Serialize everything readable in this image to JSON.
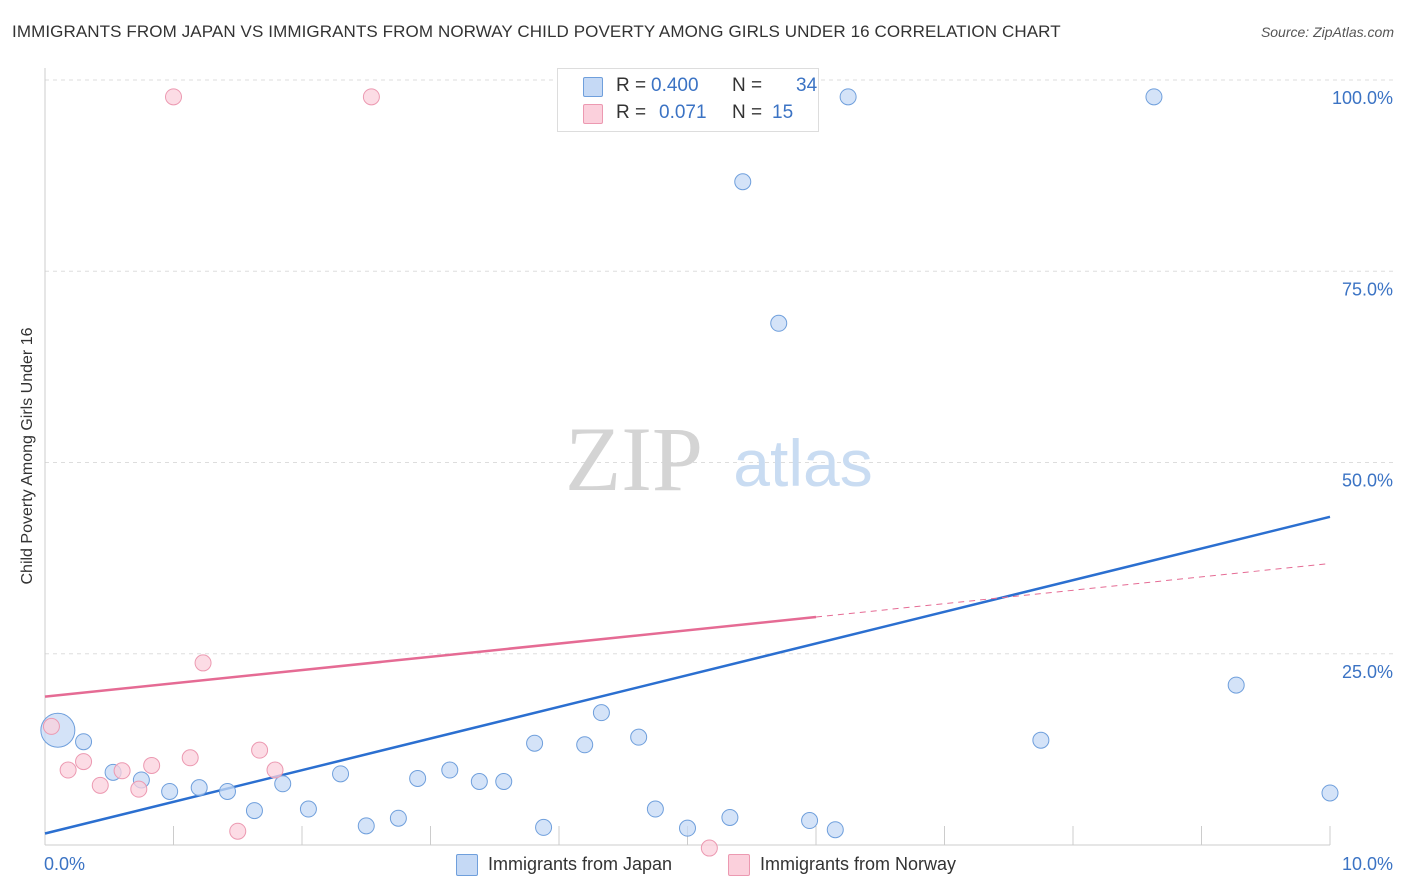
{
  "title": "IMMIGRANTS FROM JAPAN VS IMMIGRANTS FROM NORWAY CHILD POVERTY AMONG GIRLS UNDER 16 CORRELATION CHART",
  "source": "Source: ZipAtlas.com",
  "watermark": {
    "zip": "ZIP",
    "atlas": "atlas"
  },
  "colors": {
    "japan_fill": "#c5d9f5",
    "japan_stroke": "#6f9fdc",
    "japan_line": "#2b6fd0",
    "norway_fill": "#fbd0dc",
    "norway_stroke": "#ec99b1",
    "norway_line": "#e56b94",
    "axis_text": "#3b73c4",
    "grid": "#dddddd"
  },
  "legend_top": {
    "rows": [
      {
        "series": "japan",
        "r_label": "R =",
        "r_value": "0.400",
        "n_label": "N =",
        "n_value": "34"
      },
      {
        "series": "norway",
        "r_label": "R =",
        "r_value": "0.071",
        "n_label": "N =",
        "n_value": "15"
      }
    ]
  },
  "chart_data": {
    "type": "scatter",
    "title": "IMMIGRANTS FROM JAPAN VS IMMIGRANTS FROM NORWAY CHILD POVERTY AMONG GIRLS UNDER 16 CORRELATION CHART",
    "xlabel": "",
    "ylabel": "Child Poverty Among Girls Under 16",
    "xlim": [
      0,
      10
    ],
    "ylim": [
      0,
      100
    ],
    "x_tick_labels": [
      "0.0%",
      "10.0%"
    ],
    "y_tick_labels": [
      "25.0%",
      "50.0%",
      "75.0%",
      "100.0%"
    ],
    "y_ticks": [
      25,
      50,
      75,
      100
    ],
    "x_minor_ticks": [
      1,
      2,
      3,
      4,
      5,
      6,
      7,
      8,
      9,
      10
    ],
    "legend_position": "bottom-center",
    "series": [
      {
        "name": "Immigrants from Japan",
        "key": "japan",
        "points": [
          {
            "x": 0.1,
            "y": 15.0,
            "big": true
          },
          {
            "x": 0.3,
            "y": 13.5
          },
          {
            "x": 0.53,
            "y": 9.5
          },
          {
            "x": 0.75,
            "y": 8.5
          },
          {
            "x": 0.97,
            "y": 7.0
          },
          {
            "x": 1.2,
            "y": 7.5
          },
          {
            "x": 1.42,
            "y": 7.0
          },
          {
            "x": 1.63,
            "y": 4.5
          },
          {
            "x": 1.85,
            "y": 8.0
          },
          {
            "x": 2.05,
            "y": 4.7
          },
          {
            "x": 2.3,
            "y": 9.3
          },
          {
            "x": 2.5,
            "y": 2.5
          },
          {
            "x": 2.75,
            "y": 3.5
          },
          {
            "x": 2.9,
            "y": 8.7
          },
          {
            "x": 3.15,
            "y": 9.8
          },
          {
            "x": 3.38,
            "y": 8.3
          },
          {
            "x": 3.57,
            "y": 8.3
          },
          {
            "x": 3.81,
            "y": 13.3
          },
          {
            "x": 3.88,
            "y": 2.3
          },
          {
            "x": 4.2,
            "y": 13.1
          },
          {
            "x": 4.33,
            "y": 17.3
          },
          {
            "x": 4.62,
            "y": 14.1
          },
          {
            "x": 4.75,
            "y": 4.7
          },
          {
            "x": 5.0,
            "y": 2.2
          },
          {
            "x": 5.33,
            "y": 3.6
          },
          {
            "x": 5.43,
            "y": 86.7
          },
          {
            "x": 5.71,
            "y": 68.2
          },
          {
            "x": 5.95,
            "y": 3.2
          },
          {
            "x": 6.15,
            "y": 2.0
          },
          {
            "x": 6.25,
            "y": 97.8
          },
          {
            "x": 7.75,
            "y": 13.7
          },
          {
            "x": 8.63,
            "y": 97.8
          },
          {
            "x": 9.27,
            "y": 20.9
          },
          {
            "x": 10.0,
            "y": 6.8
          }
        ],
        "trend": {
          "x1": 0,
          "y1": 1.5,
          "x2": 10.0,
          "y2": 42.9
        }
      },
      {
        "name": "Immigrants from Norway",
        "key": "norway",
        "points": [
          {
            "x": 0.05,
            "y": 15.5
          },
          {
            "x": 0.18,
            "y": 9.8
          },
          {
            "x": 0.3,
            "y": 10.9
          },
          {
            "x": 0.43,
            "y": 7.8
          },
          {
            "x": 0.6,
            "y": 9.7
          },
          {
            "x": 0.73,
            "y": 7.3
          },
          {
            "x": 0.83,
            "y": 10.4
          },
          {
            "x": 1.0,
            "y": 97.8
          },
          {
            "x": 1.13,
            "y": 11.4
          },
          {
            "x": 1.23,
            "y": 23.8
          },
          {
            "x": 1.5,
            "y": 1.8
          },
          {
            "x": 1.67,
            "y": 12.4
          },
          {
            "x": 1.79,
            "y": 9.8
          },
          {
            "x": 2.54,
            "y": 97.8
          },
          {
            "x": 5.17,
            "y": -0.4
          }
        ],
        "trend": {
          "x1": 0,
          "y1": 19.4,
          "x2": 6.0,
          "y2": 29.8
        },
        "trend_dashed": {
          "x1": 6.0,
          "y1": 29.8,
          "x2": 10.0,
          "y2": 36.8
        }
      }
    ]
  }
}
